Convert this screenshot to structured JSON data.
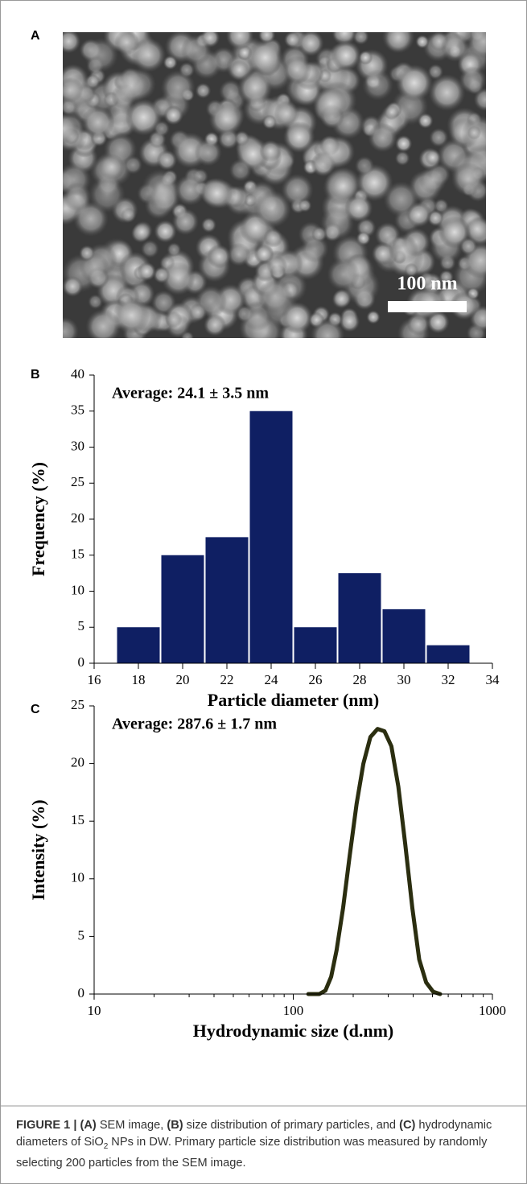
{
  "panel_labels": [
    "A",
    "B",
    "C"
  ],
  "sem_image": {
    "scale_bar": "100 nm"
  },
  "chart_data": [
    {
      "type": "histogram",
      "annotation": "Average: 24.1 ± 3.5 nm",
      "x_label": "Particle diameter (nm)",
      "y_label": "Frequency (%)",
      "bins": [
        17,
        19,
        21,
        23,
        25,
        27,
        29,
        31,
        33
      ],
      "values": [
        5,
        15,
        17.5,
        35,
        5,
        12.5,
        7.5,
        2.5
      ],
      "color": "#0f1f63",
      "xlim": [
        16,
        34
      ],
      "xticks": [
        16,
        18,
        20,
        22,
        24,
        26,
        28,
        30,
        32,
        34
      ],
      "ylim": [
        0,
        40
      ],
      "yticks": [
        0,
        5,
        10,
        15,
        20,
        25,
        30,
        35,
        40
      ]
    },
    {
      "type": "line",
      "annotation": "Average: 287.6 ± 1.7 nm",
      "x_label": "Hydrodynamic size (d.nm)",
      "y_label": "Intensity (%)",
      "xscale": "log",
      "x": [
        119,
        135,
        145,
        155,
        165,
        178,
        192,
        208,
        225,
        244,
        265,
        287,
        311,
        337,
        365,
        396,
        429,
        465,
        504,
        546
      ],
      "values": [
        0,
        0,
        0.3,
        1.5,
        3.8,
        7.5,
        12,
        16.5,
        20,
        22.3,
        23,
        22.8,
        21.5,
        18,
        13,
        7.5,
        3,
        1,
        0.2,
        0
      ],
      "color": "#2b2e10",
      "xlim": [
        10,
        1000
      ],
      "xticks": [
        10,
        100,
        1000
      ],
      "ylim": [
        0,
        25
      ],
      "yticks": [
        0,
        5,
        10,
        15,
        20,
        25
      ]
    }
  ],
  "caption": [
    {
      "text": "FIGURE 1 | ",
      "style": "bold"
    },
    {
      "text": "(A)",
      "style": "bold"
    },
    {
      "text": " SEM image, ",
      "style": "normal"
    },
    {
      "text": "(B)",
      "style": "bold"
    },
    {
      "text": " size distribution of primary particles, and ",
      "style": "normal"
    },
    {
      "text": "(C)",
      "style": "bold"
    },
    {
      "text": " hydrodynamic diameters of SiO",
      "style": "normal"
    },
    {
      "text": "2",
      "style": "sub"
    },
    {
      "text": " NPs in DW. Primary particle size distribution was measured by randomly selecting 200 particles from the SEM image.",
      "style": "normal"
    }
  ]
}
